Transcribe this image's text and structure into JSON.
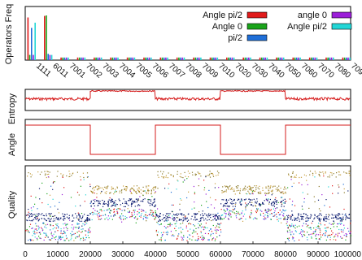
{
  "chart_data": [
    {
      "type": "bar",
      "ylabel": "Operators Freq",
      "categories": [
        "1111",
        "6011",
        "7001",
        "7002",
        "7003",
        "7004",
        "7005",
        "7006",
        "7007",
        "7008",
        "7009",
        "7010",
        "7020",
        "7030",
        "7040",
        "7050",
        "7060",
        "7070",
        "7080",
        "7090"
      ],
      "legend": {
        "placement": "top-right",
        "columns": 2
      },
      "series": [
        {
          "name": "Angle pi/2",
          "color": "#e11b1b",
          "values": [
            0.82,
            0.85,
            0.05,
            0.05,
            0.05,
            0.05,
            0.05,
            0.05,
            0.05,
            0.05,
            0.05,
            0.05,
            0.05,
            0.05,
            0.05,
            0.05,
            0.05,
            0.05,
            0.05,
            0.05
          ]
        },
        {
          "name": "Angle 0",
          "color": "#1aa41a",
          "values": [
            0.1,
            0.86,
            0.05,
            0.05,
            0.05,
            0.05,
            0.05,
            0.05,
            0.05,
            0.05,
            0.05,
            0.05,
            0.05,
            0.05,
            0.05,
            0.05,
            0.05,
            0.05,
            0.05,
            0.05
          ]
        },
        {
          "name": "pi/2",
          "color": "#1f6fd8",
          "values": [
            0.62,
            0.12,
            0.05,
            0.05,
            0.05,
            0.05,
            0.05,
            0.05,
            0.05,
            0.05,
            0.05,
            0.05,
            0.05,
            0.05,
            0.05,
            0.05,
            0.05,
            0.05,
            0.05,
            0.05
          ]
        },
        {
          "name": "angle 0",
          "color": "#9b1ed8",
          "values": [
            0.1,
            0.1,
            0.05,
            0.05,
            0.05,
            0.05,
            0.05,
            0.05,
            0.05,
            0.05,
            0.05,
            0.05,
            0.05,
            0.05,
            0.05,
            0.05,
            0.05,
            0.05,
            0.05,
            0.05
          ]
        },
        {
          "name": "Angle pi/2",
          "color": "#22d6d6",
          "values": [
            0.72,
            0.1,
            0.05,
            0.05,
            0.05,
            0.05,
            0.05,
            0.05,
            0.05,
            0.05,
            0.05,
            0.05,
            0.05,
            0.05,
            0.05,
            0.05,
            0.05,
            0.05,
            0.05,
            0.05
          ]
        }
      ],
      "ylim": [
        0,
        1
      ]
    },
    {
      "type": "line",
      "ylabel": "Entropy",
      "color": "#d61c1c",
      "xlim": [
        0,
        100000
      ],
      "ylim": [
        0,
        1
      ],
      "segments": [
        {
          "x": [
            0,
            20000
          ],
          "level": 0.55
        },
        {
          "x": [
            20000,
            40000
          ],
          "level": 0.92
        },
        {
          "x": [
            40000,
            60000
          ],
          "level": 0.55
        },
        {
          "x": [
            60000,
            80000
          ],
          "level": 0.92
        },
        {
          "x": [
            80000,
            100000
          ],
          "level": 0.55
        }
      ]
    },
    {
      "type": "line",
      "ylabel": "Angle",
      "color": "#d61c1c",
      "xlim": [
        0,
        100000
      ],
      "ylim": [
        0,
        1
      ],
      "x": [
        0,
        20000,
        20000,
        40000,
        40000,
        60000,
        60000,
        80000,
        80000,
        100000
      ],
      "y": [
        1,
        1,
        0,
        0,
        1,
        1,
        0,
        0,
        1,
        1
      ]
    },
    {
      "type": "scatter",
      "ylabel": "Quality",
      "xlim": [
        0,
        100000
      ],
      "xticks": [
        "0",
        "10000",
        "20000",
        "30000",
        "40000",
        "50000",
        "60000",
        "70000",
        "80000",
        "90000",
        "100000"
      ],
      "phases": [
        {
          "x": [
            0,
            20000
          ],
          "kind": "a"
        },
        {
          "x": [
            20000,
            40000
          ],
          "kind": "b"
        },
        {
          "x": [
            40000,
            60000
          ],
          "kind": "a"
        },
        {
          "x": [
            60000,
            80000
          ],
          "kind": "b"
        },
        {
          "x": [
            80000,
            100000
          ],
          "kind": "a"
        }
      ],
      "point_colors": [
        "#0a1a6e",
        "#1f6fd8",
        "#1aa41a",
        "#e11b1b",
        "#9b1ed8",
        "#22d6d6",
        "#8a7a2a",
        "#c8a040"
      ]
    }
  ]
}
